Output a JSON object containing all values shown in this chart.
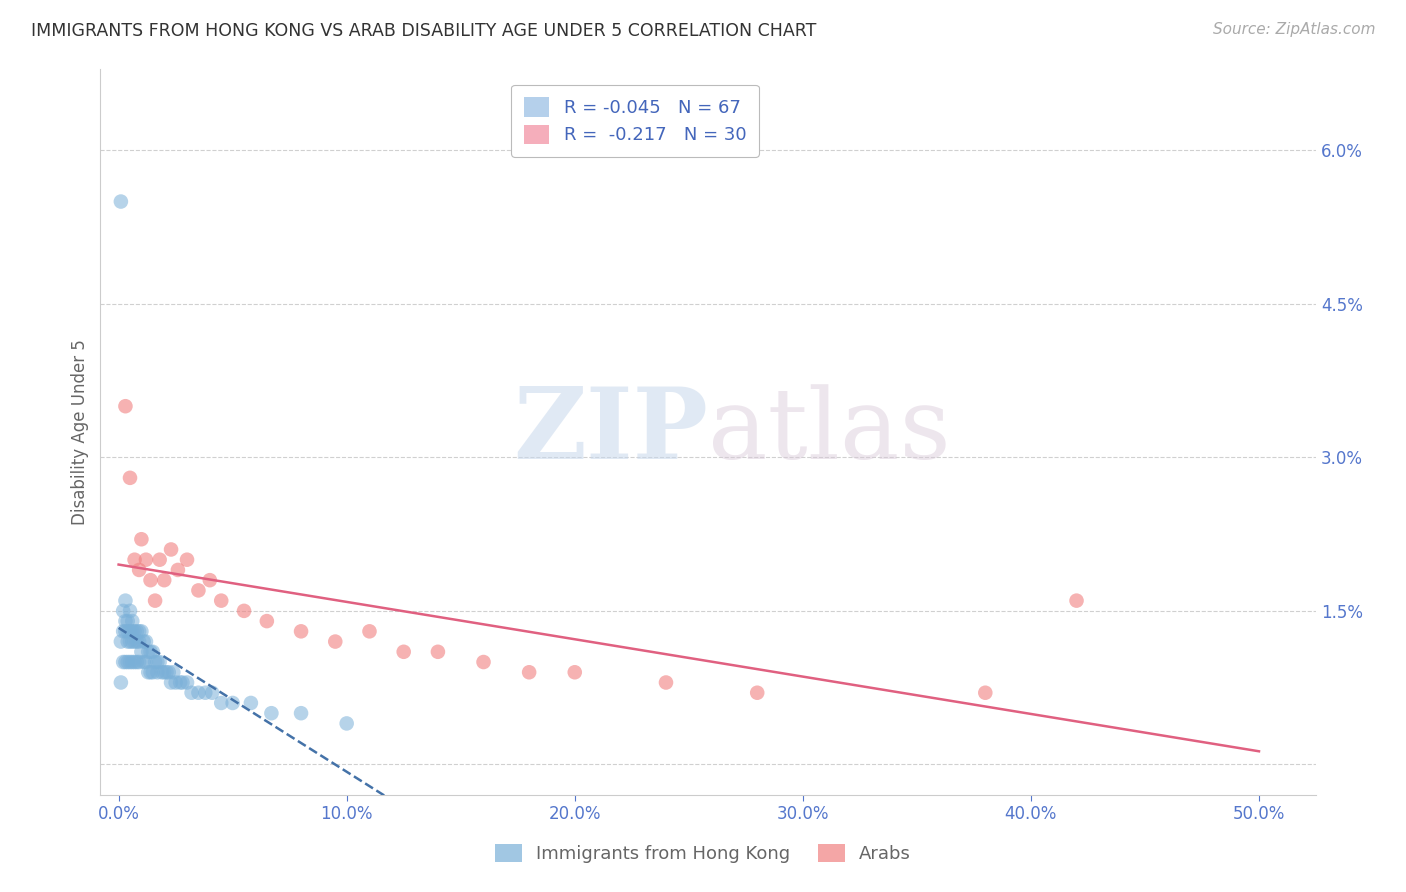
{
  "title": "IMMIGRANTS FROM HONG KONG VS ARAB DISABILITY AGE UNDER 5 CORRELATION CHART",
  "source": "Source: ZipAtlas.com",
  "ylabel": "Disability Age Under 5",
  "watermark_zip": "ZIP",
  "watermark_atlas": "atlas",
  "x_ticks": [
    0.0,
    0.1,
    0.2,
    0.3,
    0.4,
    0.5
  ],
  "x_tick_labels": [
    "0.0%",
    "10.0%",
    "20.0%",
    "30.0%",
    "40.0%",
    "50.0%"
  ],
  "y_ticks": [
    0.0,
    0.015,
    0.03,
    0.045,
    0.06
  ],
  "y_tick_labels": [
    "",
    "1.5%",
    "3.0%",
    "4.5%",
    "6.0%"
  ],
  "xlim": [
    -0.008,
    0.525
  ],
  "ylim": [
    -0.003,
    0.068
  ],
  "legend1_label": "R = -0.045   N = 67",
  "legend2_label": "R =  -0.217   N = 30",
  "legend1_color": "#a8c8e8",
  "legend2_color": "#f4a0b0",
  "series1_color": "#7ab0d8",
  "series2_color": "#f08080",
  "trend1_color": "#4472a8",
  "trend2_color": "#e06080",
  "background_color": "#ffffff",
  "grid_color": "#d0d0d0",
  "tick_color": "#5577cc",
  "hk_x": [
    0.001,
    0.001,
    0.001,
    0.002,
    0.002,
    0.002,
    0.003,
    0.003,
    0.003,
    0.003,
    0.004,
    0.004,
    0.004,
    0.004,
    0.005,
    0.005,
    0.005,
    0.005,
    0.006,
    0.006,
    0.006,
    0.006,
    0.007,
    0.007,
    0.007,
    0.008,
    0.008,
    0.008,
    0.009,
    0.009,
    0.009,
    0.01,
    0.01,
    0.011,
    0.011,
    0.012,
    0.012,
    0.013,
    0.013,
    0.014,
    0.014,
    0.015,
    0.015,
    0.016,
    0.017,
    0.017,
    0.018,
    0.019,
    0.02,
    0.021,
    0.022,
    0.023,
    0.024,
    0.025,
    0.027,
    0.028,
    0.03,
    0.032,
    0.035,
    0.038,
    0.041,
    0.045,
    0.05,
    0.058,
    0.067,
    0.08,
    0.1
  ],
  "hk_y": [
    0.055,
    0.012,
    0.008,
    0.015,
    0.013,
    0.01,
    0.016,
    0.014,
    0.013,
    0.01,
    0.014,
    0.013,
    0.012,
    0.01,
    0.015,
    0.013,
    0.012,
    0.01,
    0.014,
    0.013,
    0.012,
    0.01,
    0.013,
    0.012,
    0.01,
    0.013,
    0.012,
    0.01,
    0.013,
    0.012,
    0.01,
    0.013,
    0.011,
    0.012,
    0.01,
    0.012,
    0.01,
    0.011,
    0.009,
    0.011,
    0.009,
    0.011,
    0.009,
    0.01,
    0.01,
    0.009,
    0.01,
    0.009,
    0.009,
    0.009,
    0.009,
    0.008,
    0.009,
    0.008,
    0.008,
    0.008,
    0.008,
    0.007,
    0.007,
    0.007,
    0.007,
    0.006,
    0.006,
    0.006,
    0.005,
    0.005,
    0.004
  ],
  "arab_x": [
    0.003,
    0.005,
    0.007,
    0.009,
    0.01,
    0.012,
    0.014,
    0.016,
    0.018,
    0.02,
    0.023,
    0.026,
    0.03,
    0.035,
    0.04,
    0.045,
    0.055,
    0.065,
    0.08,
    0.095,
    0.11,
    0.125,
    0.14,
    0.16,
    0.18,
    0.2,
    0.24,
    0.28,
    0.38,
    0.42
  ],
  "arab_y": [
    0.035,
    0.028,
    0.02,
    0.019,
    0.022,
    0.02,
    0.018,
    0.016,
    0.02,
    0.018,
    0.021,
    0.019,
    0.02,
    0.017,
    0.018,
    0.016,
    0.015,
    0.014,
    0.013,
    0.012,
    0.013,
    0.011,
    0.011,
    0.01,
    0.009,
    0.009,
    0.008,
    0.007,
    0.007,
    0.016
  ]
}
